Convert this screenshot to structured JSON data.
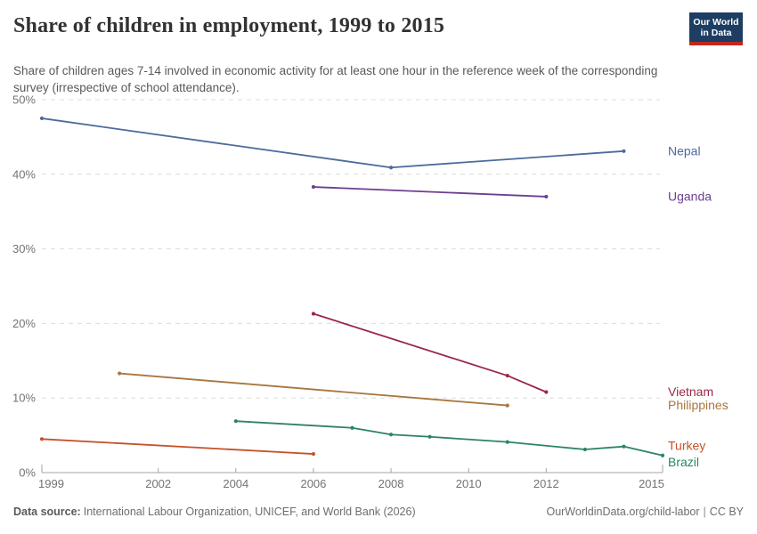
{
  "header": {
    "title": "Share of children in employment, 1999 to 2015",
    "subtitle": "Share of children ages 7-14 involved in economic activity for at least one hour in the reference week of the corresponding survey (irrespective of school attendance).",
    "logo": {
      "line1": "Our World",
      "line2": "in Data",
      "bg_color": "#1d3d63",
      "accent_color": "#c0271f"
    }
  },
  "chart_data": {
    "type": "line",
    "title": "Share of children in employment, 1999 to 2015",
    "xlabel": "",
    "ylabel": "",
    "xlim": [
      1999,
      2015
    ],
    "ylim": [
      0,
      50
    ],
    "x_ticks": [
      1999,
      2002,
      2004,
      2006,
      2008,
      2010,
      2012,
      2015
    ],
    "y_ticks": [
      0,
      10,
      20,
      30,
      40,
      50
    ],
    "y_tick_suffix": "%",
    "grid": "dashed-horizontal",
    "legend_position": "right-edge-labels",
    "grid_color": "#dcdcdc",
    "axis_color": "#a5a5a5",
    "tick_label_color": "#737373",
    "series": [
      {
        "name": "Nepal",
        "color": "#4C6A9C",
        "label_dy": 0,
        "points": [
          [
            1999,
            47.5
          ],
          [
            2008,
            40.9
          ],
          [
            2014,
            43.1
          ]
        ]
      },
      {
        "name": "Uganda",
        "color": "#6D3E91",
        "label_dy": 0,
        "points": [
          [
            2006,
            38.3
          ],
          [
            2012,
            37.0
          ]
        ]
      },
      {
        "name": "Vietnam",
        "color": "#9A2846",
        "label_dy": 0,
        "points": [
          [
            2006,
            21.3
          ],
          [
            2011,
            13.0
          ],
          [
            2012,
            10.8
          ]
        ]
      },
      {
        "name": "Philippines",
        "color": "#A8763E",
        "label_dy": 0,
        "points": [
          [
            2001,
            13.3
          ],
          [
            2011,
            9.0
          ]
        ]
      },
      {
        "name": "Turkey",
        "color": "#C4522A",
        "label_dy": -9,
        "points": [
          [
            1999,
            4.5
          ],
          [
            2006,
            2.5
          ]
        ]
      },
      {
        "name": "Brazil",
        "color": "#2C8465",
        "label_dy": 8,
        "points": [
          [
            2004,
            6.9
          ],
          [
            2007,
            6.0
          ],
          [
            2008,
            5.1
          ],
          [
            2009,
            4.8
          ],
          [
            2011,
            4.1
          ],
          [
            2013,
            3.1
          ],
          [
            2014,
            3.5
          ],
          [
            2015,
            2.3
          ]
        ]
      }
    ]
  },
  "footer": {
    "source_label": "Data source:",
    "source_text": "International Labour Organization, UNICEF, and World Bank (2026)",
    "link_text": "OurWorldinData.org/child-labor",
    "separator": "|",
    "license_text": "CC BY"
  }
}
